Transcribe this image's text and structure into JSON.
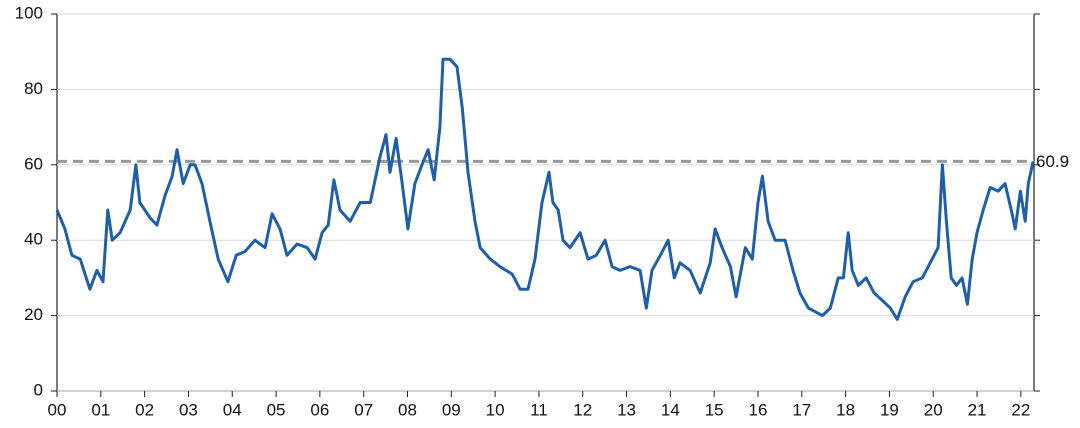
{
  "chart_data": {
    "type": "line",
    "x": [
      2000.0,
      2000.18,
      2000.34,
      2000.53,
      2000.75,
      2000.91,
      2001.05,
      2001.16,
      2001.26,
      2001.44,
      2001.67,
      2001.8,
      2001.89,
      2002.12,
      2002.28,
      2002.47,
      2002.63,
      2002.74,
      2002.88,
      2003.04,
      2003.15,
      2003.31,
      2003.49,
      2003.68,
      2003.9,
      2004.09,
      2004.29,
      2004.52,
      2004.75,
      2004.91,
      2005.09,
      2005.25,
      2005.48,
      2005.71,
      2005.89,
      2006.05,
      2006.19,
      2006.32,
      2006.46,
      2006.69,
      2006.92,
      2007.15,
      2007.37,
      2007.51,
      2007.6,
      2007.74,
      2007.88,
      2008.01,
      2008.17,
      2008.33,
      2008.47,
      2008.61,
      2008.74,
      2008.81,
      2008.97,
      2009.13,
      2009.25,
      2009.38,
      2009.54,
      2009.66,
      2009.89,
      2010.11,
      2010.39,
      2010.57,
      2010.75,
      2010.91,
      2011.07,
      2011.23,
      2011.32,
      2011.44,
      2011.55,
      2011.71,
      2011.94,
      2012.12,
      2012.31,
      2012.51,
      2012.67,
      2012.85,
      2013.08,
      2013.31,
      2013.45,
      2013.58,
      2013.77,
      2013.95,
      2014.09,
      2014.22,
      2014.45,
      2014.68,
      2014.91,
      2015.02,
      2015.18,
      2015.37,
      2015.5,
      2015.71,
      2015.87,
      2016.0,
      2016.1,
      2016.23,
      2016.39,
      2016.62,
      2016.8,
      2016.96,
      2017.15,
      2017.31,
      2017.47,
      2017.65,
      2017.83,
      2017.95,
      2018.06,
      2018.15,
      2018.29,
      2018.47,
      2018.65,
      2018.84,
      2019.02,
      2019.18,
      2019.36,
      2019.54,
      2019.75,
      2019.93,
      2020.11,
      2020.21,
      2020.3,
      2020.41,
      2020.53,
      2020.66,
      2020.78,
      2020.89,
      2021.0,
      2021.14,
      2021.3,
      2021.48,
      2021.64,
      2021.8,
      2021.87,
      2021.99,
      2022.1,
      2022.17,
      2022.28
    ],
    "series": [
      {
        "color": "#1f5fa8",
        "values": [
          48,
          43,
          36,
          35,
          27,
          32,
          29,
          48,
          40,
          42,
          48,
          60,
          50,
          46,
          44,
          52,
          57,
          64,
          55,
          60,
          60,
          55,
          45,
          35,
          29,
          36,
          37,
          40,
          38,
          47,
          43,
          36,
          39,
          38,
          35,
          42,
          44,
          56,
          48,
          45,
          50,
          50,
          62,
          68,
          58,
          67,
          55,
          43,
          55,
          60,
          64,
          56,
          70,
          88,
          88,
          86,
          75,
          58,
          45,
          38,
          35,
          33,
          31,
          27,
          27,
          35,
          50,
          58,
          50,
          48,
          40,
          38,
          42,
          35,
          36,
          40,
          33,
          32,
          33,
          32,
          22,
          32,
          36,
          40,
          30,
          34,
          32,
          26,
          34,
          43,
          38,
          33,
          25,
          38,
          35,
          50,
          57,
          45,
          40,
          40,
          32,
          26,
          22,
          21,
          20,
          22,
          30,
          30,
          42,
          32,
          28,
          30,
          26,
          24,
          22,
          19,
          25,
          29,
          30,
          34,
          38,
          60,
          45,
          30,
          28,
          30,
          23,
          35,
          42,
          48,
          54,
          53,
          55,
          47,
          43,
          53,
          45,
          55,
          60.9
        ]
      }
    ],
    "reference_line": 60.9,
    "xlim": [
      2000,
      2022.3
    ],
    "xticks": [
      {
        "value": 2000,
        "label": "00"
      },
      {
        "value": 2001,
        "label": "01"
      },
      {
        "value": 2002,
        "label": "02"
      },
      {
        "value": 2003,
        "label": "03"
      },
      {
        "value": 2004,
        "label": "04"
      },
      {
        "value": 2005,
        "label": "05"
      },
      {
        "value": 2006,
        "label": "06"
      },
      {
        "value": 2007,
        "label": "07"
      },
      {
        "value": 2008,
        "label": "08"
      },
      {
        "value": 2009,
        "label": "09"
      },
      {
        "value": 2010,
        "label": "10"
      },
      {
        "value": 2011,
        "label": "11"
      },
      {
        "value": 2012,
        "label": "12"
      },
      {
        "value": 2013,
        "label": "13"
      },
      {
        "value": 2014,
        "label": "14"
      },
      {
        "value": 2015,
        "label": "15"
      },
      {
        "value": 2016,
        "label": "16"
      },
      {
        "value": 2017,
        "label": "17"
      },
      {
        "value": 2018,
        "label": "18"
      },
      {
        "value": 2019,
        "label": "19"
      },
      {
        "value": 2020,
        "label": "20"
      },
      {
        "value": 2021,
        "label": "21"
      },
      {
        "value": 2022,
        "label": "22"
      }
    ],
    "ylim": [
      0,
      100
    ],
    "yticks": [
      0,
      20,
      40,
      60,
      80,
      100
    ],
    "grid": true
  }
}
